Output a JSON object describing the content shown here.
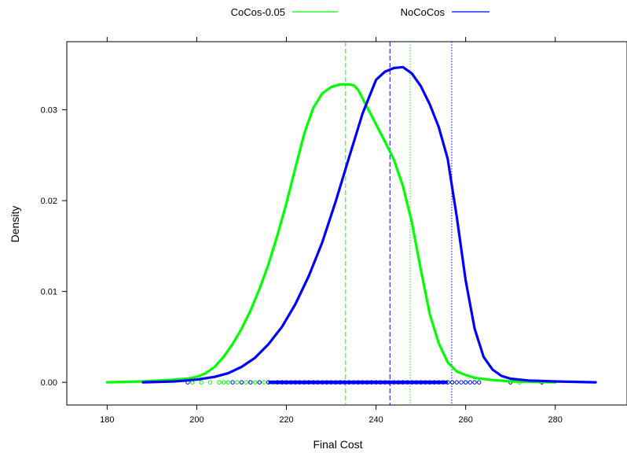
{
  "chart_data": {
    "type": "line",
    "title": "",
    "xlabel": "Final Cost",
    "ylabel": "Density",
    "xlim": [
      171,
      296
    ],
    "ylim": [
      -0.0025,
      0.0375
    ],
    "x_ticks": [
      180,
      200,
      220,
      240,
      260,
      280
    ],
    "y_ticks": [
      0.0,
      0.01,
      0.02,
      0.03
    ],
    "x_tick_labels": [
      "180",
      "200",
      "220",
      "240",
      "260",
      "280"
    ],
    "y_tick_labels": [
      "0.00",
      "0.01",
      "0.02",
      "0.03"
    ],
    "grid": false,
    "legend_position": "top-center",
    "series": [
      {
        "name": "CoCos-0.05",
        "color": "#00ff00",
        "x": [
          180,
          188,
          195,
          198,
          200,
          202,
          204,
          206,
          208,
          210,
          212,
          214,
          216,
          218,
          220,
          222,
          224,
          226,
          228,
          230,
          232,
          234,
          235,
          236,
          238,
          240,
          242,
          244,
          246,
          248,
          250,
          252,
          254,
          256,
          258,
          260,
          262,
          265,
          270,
          280
        ],
        "y": [
          0.0,
          0.0001,
          0.0003,
          0.0004,
          0.0006,
          0.001,
          0.0017,
          0.0028,
          0.0042,
          0.0059,
          0.0079,
          0.0103,
          0.013,
          0.0162,
          0.0197,
          0.0236,
          0.0274,
          0.0302,
          0.0318,
          0.0325,
          0.0328,
          0.0328,
          0.0327,
          0.0322,
          0.0303,
          0.0284,
          0.0265,
          0.0245,
          0.0216,
          0.0176,
          0.0124,
          0.0075,
          0.0043,
          0.0022,
          0.0012,
          0.0008,
          0.0005,
          0.0003,
          0.0001,
          0.0
        ]
      },
      {
        "name": "NoCoCos",
        "color": "#0000ff",
        "x": [
          188,
          195,
          200,
          204,
          207,
          210,
          213,
          216,
          219,
          222,
          225,
          228,
          231,
          234,
          237,
          240,
          242,
          244,
          246,
          248,
          250,
          252,
          254,
          256,
          258,
          260,
          262,
          264,
          266,
          268,
          270,
          274,
          280,
          289
        ],
        "y": [
          0.0,
          0.0001,
          0.0003,
          0.0006,
          0.001,
          0.0017,
          0.0027,
          0.0042,
          0.0061,
          0.0086,
          0.0117,
          0.0154,
          0.0199,
          0.0248,
          0.0296,
          0.0333,
          0.0342,
          0.0346,
          0.0347,
          0.034,
          0.0326,
          0.0306,
          0.0281,
          0.0246,
          0.0183,
          0.0112,
          0.0059,
          0.0028,
          0.0014,
          0.0007,
          0.0004,
          0.0002,
          0.0001,
          0.0
        ]
      }
    ],
    "reference_lines": [
      {
        "series": "CoCos-0.05",
        "x": 233.2,
        "style": "dashed",
        "color": "#00ff00"
      },
      {
        "series": "CoCos-0.05",
        "x": 247.6,
        "style": "dotted",
        "color": "#00ff00"
      },
      {
        "series": "NoCoCos",
        "x": 243.1,
        "style": "dashed",
        "color": "#0000ff"
      },
      {
        "series": "NoCoCos",
        "x": 256.9,
        "style": "dotted",
        "color": "#0000ff"
      }
    ],
    "rug": {
      "CoCos-0.05": [
        199,
        201,
        203,
        205,
        206,
        207,
        209,
        210,
        211,
        212,
        213,
        214,
        215,
        216,
        217,
        218,
        219,
        220,
        221,
        222,
        223,
        224,
        225,
        226,
        227,
        228,
        229,
        230,
        231,
        232,
        233,
        234,
        235,
        236,
        237,
        238,
        239,
        240,
        241,
        242,
        243,
        244,
        245,
        246,
        247,
        248,
        249,
        250,
        251,
        252,
        253,
        254,
        256,
        257,
        260,
        262,
        272
      ],
      "NoCoCos": [
        198,
        208,
        210,
        212,
        214,
        216,
        218,
        219,
        220,
        221,
        222,
        223,
        224,
        225,
        226,
        227,
        228,
        229,
        230,
        231,
        232,
        233,
        234,
        235,
        236,
        237,
        238,
        239,
        240,
        241,
        242,
        243,
        244,
        245,
        246,
        247,
        248,
        249,
        250,
        251,
        252,
        253,
        254,
        255,
        256,
        257,
        258,
        259,
        260,
        261,
        262,
        263,
        270,
        277
      ]
    }
  }
}
